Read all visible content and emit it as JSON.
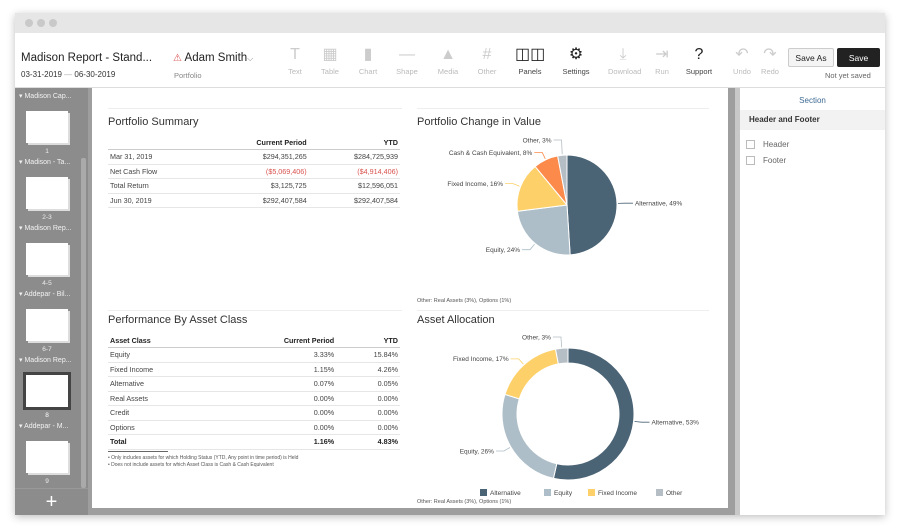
{
  "header": {
    "title": "Madison Report - Stand...",
    "date_start": "03-31-2019",
    "date_sep": "—",
    "date_end": "06-30-2019",
    "owner": "Adam Smith",
    "owner_caret": "⌵",
    "warning_icon": "⚠",
    "owner_sub": "Portfolio"
  },
  "toolbar": [
    {
      "label": "Text",
      "icon": "T",
      "enabled": false
    },
    {
      "label": "Table",
      "icon": "▦",
      "enabled": false
    },
    {
      "label": "Chart",
      "icon": "▮",
      "enabled": false
    },
    {
      "label": "Shape",
      "icon": "—",
      "enabled": false
    },
    {
      "label": "Media",
      "icon": "▲",
      "enabled": false
    },
    {
      "label": "Other",
      "icon": "#",
      "enabled": false
    },
    {
      "label": "Panels",
      "icon": "◫◫",
      "enabled": true
    },
    {
      "label": "Settings",
      "icon": "⚙",
      "enabled": true
    },
    {
      "label": "Download",
      "icon": "⤓",
      "enabled": false
    },
    {
      "label": "Run",
      "icon": "⇥",
      "enabled": false
    },
    {
      "label": "Support",
      "icon": "?",
      "enabled": true
    },
    {
      "label": "Undo",
      "icon": "↶",
      "enabled": false
    },
    {
      "label": "Redo",
      "icon": "↷",
      "enabled": false
    }
  ],
  "save_as": "Save As",
  "save": "Save",
  "save_status": "Not yet saved",
  "sidebar": {
    "sections": [
      {
        "name": "Madison Cap...",
        "pages": "1"
      },
      {
        "name": "Madison - Ta...",
        "pages": "2-3"
      },
      {
        "name": "Madison Rep...",
        "pages": "4-5"
      },
      {
        "name": "Addepar - Bil...",
        "pages": "6-7"
      },
      {
        "name": "Madison Rep...",
        "pages": "8",
        "selected": true
      },
      {
        "name": "Addepar - M...",
        "pages": "9"
      }
    ],
    "add": "+"
  },
  "summary": {
    "title": "Portfolio Summary",
    "headers": [
      "",
      "Current Period",
      "YTD"
    ],
    "rows": [
      [
        "Mar 31, 2019",
        "$294,351,265",
        "$284,725,939"
      ],
      [
        "Net Cash Flow",
        "($5,069,406)",
        "($4,914,406)"
      ],
      [
        "Total Return",
        "$3,125,725",
        "$12,596,051"
      ],
      [
        "Jun 30, 2019",
        "$292,407,584",
        "$292,407,584"
      ]
    ]
  },
  "performance": {
    "title": "Performance By Asset Class",
    "headers": [
      "Asset Class",
      "Current Period",
      "YTD"
    ],
    "rows": [
      [
        "Equity",
        "3.33%",
        "15.84%"
      ],
      [
        "Fixed Income",
        "1.15%",
        "4.26%"
      ],
      [
        "Alternative",
        "0.07%",
        "0.05%"
      ],
      [
        "Real Assets",
        "0.00%",
        "0.00%"
      ],
      [
        "Credit",
        "0.00%",
        "0.00%"
      ],
      [
        "Options",
        "0.00%",
        "0.00%"
      ]
    ],
    "total": [
      "Total",
      "1.16%",
      "4.83%"
    ],
    "notes": [
      "• Only includes assets for which Holding Status (YTD, Any point in time period) is Held",
      "• Does not include assets for which Asset Class is Cash & Cash Equivalent"
    ]
  },
  "chart_data": [
    {
      "type": "pie",
      "title": "Portfolio Change in Value",
      "categories": [
        "Alternative",
        "Equity",
        "Fixed Income",
        "Cash & Cash Equivalent",
        "Other"
      ],
      "values": [
        49,
        24,
        16,
        8,
        3
      ],
      "colors": [
        "#4a6375",
        "#adbec8",
        "#fdd06a",
        "#fb8a4b",
        "#b5bec4"
      ],
      "footnote": "Other: Real Assets (3%), Options (1%)"
    },
    {
      "type": "donut",
      "title": "Asset Allocation",
      "categories": [
        "Alternative",
        "Equity",
        "Fixed Income",
        "Other"
      ],
      "values": [
        53,
        26,
        17,
        3
      ],
      "colors": [
        "#4a6375",
        "#adbec8",
        "#fdd06a",
        "#b5bec4"
      ],
      "legend": [
        "Alternative",
        "Equity",
        "Fixed Income",
        "Other"
      ],
      "legend_position": "bottom",
      "footnote": "Other: Real Assets (3%), Options (1%)"
    }
  ],
  "right_panel": {
    "tab": "Section",
    "heading": "Header and Footer",
    "options": [
      {
        "label": "Header",
        "checked": false
      },
      {
        "label": "Footer",
        "checked": false
      }
    ]
  }
}
